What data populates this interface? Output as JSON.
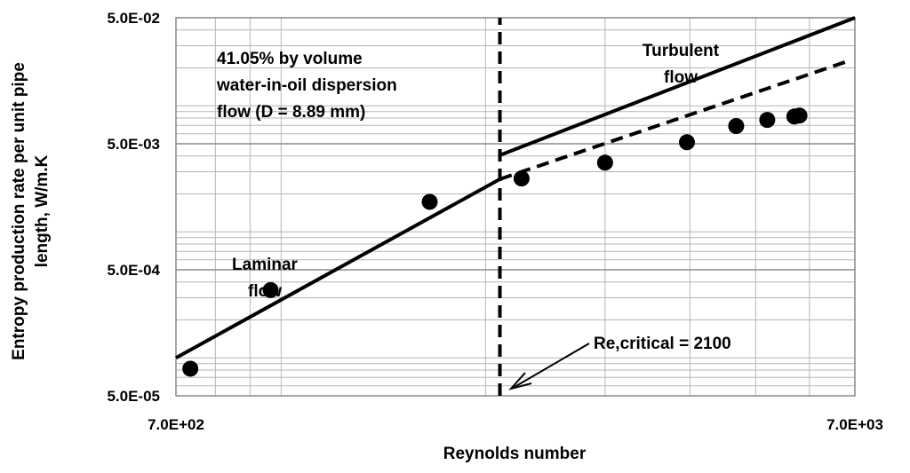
{
  "chart_data": {
    "type": "scatter",
    "title": "",
    "xlabel": "Reynolds number",
    "ylabel_lines": [
      "Entropy production rate per unit pipe",
      "length, W/m.K"
    ],
    "x_scale": "log",
    "y_scale": "log",
    "xlim": [
      700,
      7000
    ],
    "ylim": [
      5e-05,
      0.05
    ],
    "x_tick_labels": [
      "7.0E+02",
      "7.0E+03"
    ],
    "y_tick_labels": [
      "5.0E-05",
      "5.0E-04",
      "5.0E-03",
      "5.0E-02"
    ],
    "grid": true,
    "legend": "none",
    "series": [
      {
        "style": "markers",
        "color": "#000000",
        "x": [
          735,
          965,
          1655,
          2260,
          3000,
          3960,
          4680,
          5200,
          5700,
          5800
        ],
        "y": [
          8.2e-05,
          0.000345,
          0.00173,
          0.00265,
          0.00354,
          0.00514,
          0.00691,
          0.00773,
          0.00823,
          0.00837
        ]
      },
      {
        "style": "solid-line",
        "color": "#000000",
        "x": [
          700,
          2100
        ],
        "y": [
          0.0001,
          0.00262
        ]
      },
      {
        "style": "solid-line",
        "color": "#000000",
        "x": [
          2100,
          7000
        ],
        "y": [
          0.00406,
          0.05
        ]
      },
      {
        "style": "dashed-line",
        "color": "#000000",
        "x": [
          2100,
          6800
        ],
        "y": [
          0.00262,
          0.0224
        ]
      },
      {
        "style": "vertical-dashed-line",
        "color": "#000000",
        "x": [
          2100,
          2100
        ],
        "y": [
          5e-05,
          0.05
        ]
      }
    ],
    "annotations": {
      "description_lines": [
        "41.05% by volume",
        "water-in-oil dispersion",
        "flow (D = 8.89 mm)"
      ],
      "turbulent_lines": [
        "Turbulent",
        "flow"
      ],
      "laminar_lines": [
        "Laminar",
        "flow"
      ],
      "critical_label": "Re,critical = 2100"
    }
  }
}
